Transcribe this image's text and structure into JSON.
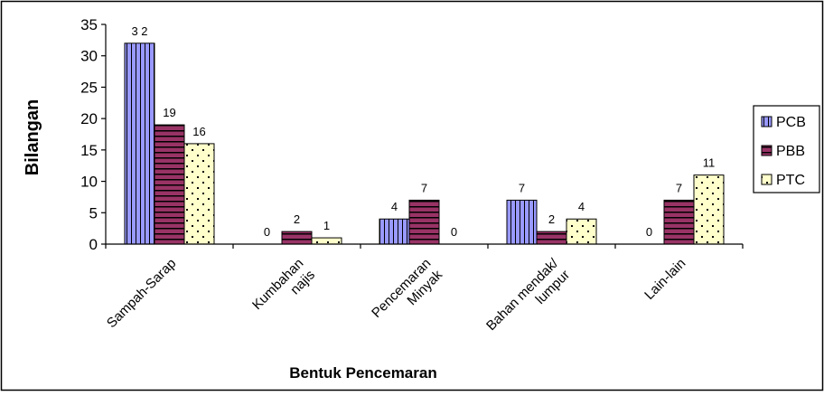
{
  "chart_data": {
    "type": "bar",
    "categories": [
      "Sampah-Sarap",
      "Kumbahan najis",
      "Pencemaran Minyak",
      "Bahan mendak/ lumpur",
      "Lain-lain"
    ],
    "category_lines": [
      [
        "Sampah-Sarap"
      ],
      [
        "Kumbahan",
        "najis"
      ],
      [
        "Pencemaran",
        "Minyak"
      ],
      [
        "Bahan mendak/",
        "lumpur"
      ],
      [
        "Lain-lain"
      ]
    ],
    "series": [
      {
        "name": "PCB",
        "values": [
          32,
          0,
          4,
          7,
          0
        ],
        "labels": [
          "3 2",
          "0",
          "4",
          "7",
          "0"
        ],
        "color": "#9999ff",
        "pattern": "vertical-lines"
      },
      {
        "name": "PBB",
        "values": [
          19,
          2,
          7,
          2,
          7
        ],
        "labels": [
          "19",
          "2",
          "7",
          "2",
          "7"
        ],
        "color": "#993366",
        "pattern": "horizontal-lines"
      },
      {
        "name": "PTC",
        "values": [
          16,
          1,
          0,
          4,
          11
        ],
        "labels": [
          "16",
          "1",
          "0",
          "4",
          "11"
        ],
        "color": "#ffffcc",
        "pattern": "dots"
      }
    ],
    "title": "",
    "xlabel": "Bentuk Pencemaran",
    "ylabel": "Bilangan",
    "ylim": [
      0,
      35
    ],
    "yticks": [
      "0",
      "5",
      "10",
      "15",
      "20",
      "25",
      "30",
      "35"
    ],
    "grid": false,
    "legend_position": "right"
  }
}
